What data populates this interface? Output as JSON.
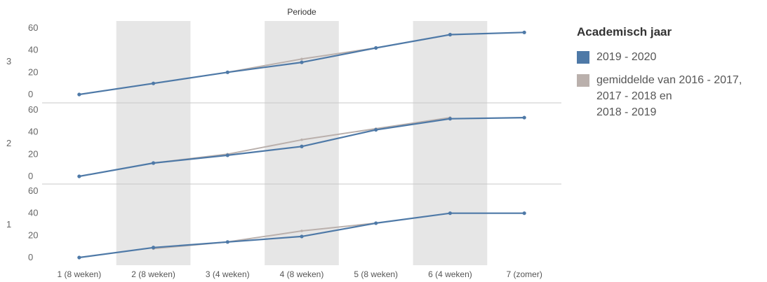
{
  "chart_data": {
    "type": "line",
    "title": "",
    "xlabel": "Periode",
    "ylabel": "",
    "categories": [
      "1 (8 weken)",
      "2 (8 weken)",
      "3 (4 weken)",
      "4 (8 weken)",
      "5 (8 weken)",
      "6 (4 weken)",
      "7 (zomer)"
    ],
    "ylim": [
      0,
      60
    ],
    "yticks": [
      0,
      20,
      40,
      60
    ],
    "grid": false,
    "shaded_categories": [
      1,
      3,
      5
    ],
    "legend": {
      "title": "Academisch jaar",
      "placement": "right",
      "items": [
        {
          "label": "2019 - 2020",
          "color": "#4e79a7"
        },
        {
          "label": "gemiddelde van 2016 - 2017,\n2017 - 2018 en\n2018 - 2019",
          "color": "#bab0ac"
        }
      ]
    },
    "panels": [
      {
        "row_label": "3",
        "series": [
          {
            "name": "gemiddelde van 2016 - 2017, 2017 - 2018 en 2018 - 2019",
            "color": "#bab0ac",
            "values": [
              null,
              null,
              20,
              32,
              42,
              null,
              null
            ]
          },
          {
            "name": "2019 - 2020",
            "color": "#4e79a7",
            "values": [
              0,
              10,
              20,
              29,
              42,
              54,
              56
            ]
          }
        ]
      },
      {
        "row_label": "2",
        "series": [
          {
            "name": "gemiddelde van 2016 - 2017, 2017 - 2018 en 2018 - 2019",
            "color": "#bab0ac",
            "values": [
              null,
              12,
              20,
              33,
              43,
              53,
              null
            ]
          },
          {
            "name": "2019 - 2020",
            "color": "#4e79a7",
            "values": [
              0,
              12,
              19,
              27,
              42,
              52,
              53
            ]
          }
        ]
      },
      {
        "row_label": "1",
        "series": [
          {
            "name": "gemiddelde van 2016 - 2017, 2017 - 2018 en 2018 - 2019",
            "color": "#bab0ac",
            "values": [
              null,
              8,
              14,
              24,
              31,
              null,
              null
            ]
          },
          {
            "name": "2019 - 2020",
            "color": "#4e79a7",
            "values": [
              0,
              9,
              14,
              19,
              31,
              40,
              40
            ]
          }
        ]
      }
    ]
  }
}
